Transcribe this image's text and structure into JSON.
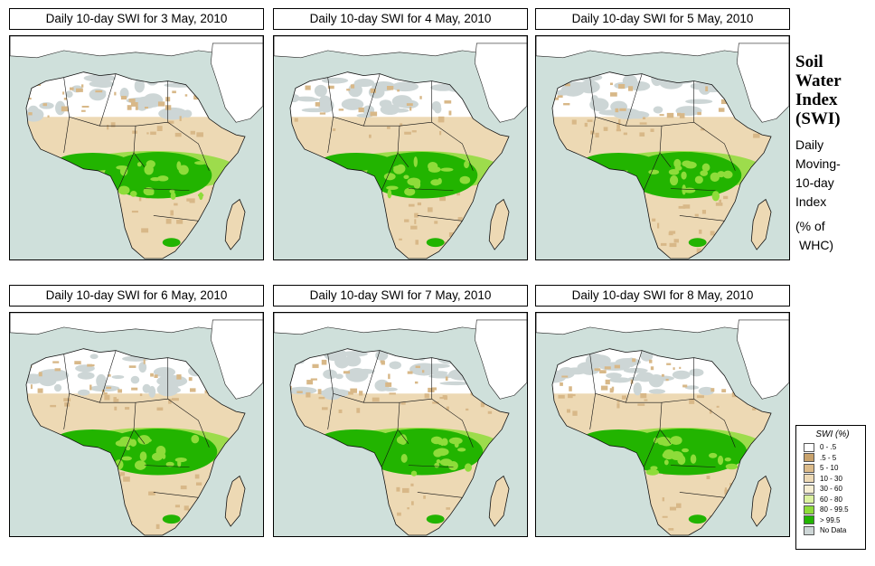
{
  "panels": [
    {
      "title": "Daily 10-day SWI for  3 May, 2010"
    },
    {
      "title": "Daily 10-day SWI for  4 May, 2010"
    },
    {
      "title": "Daily 10-day SWI for  5 May, 2010"
    },
    {
      "title": "Daily 10-day SWI for  6 May, 2010"
    },
    {
      "title": "Daily 10-day SWI for  7 May, 2010"
    },
    {
      "title": "Daily 10-day SWI for  8 May, 2010"
    }
  ],
  "side": {
    "title_line1": "Soil",
    "title_line2": "Water",
    "title_line3": "Index",
    "title_line4": "(SWI)",
    "sub_line1": "Daily",
    "sub_line2": "Moving-",
    "sub_line3": "10-day",
    "sub_line4": "Index",
    "unit_line1": "(% of",
    "unit_line2": "WHC)"
  },
  "legend": {
    "title": "SWI (%)",
    "items": [
      {
        "label": "0 - .5",
        "color": "#ffffff"
      },
      {
        "label": ".5 - 5",
        "color": "#c8a26c"
      },
      {
        "label": "5 - 10",
        "color": "#dcbb8a"
      },
      {
        "label": "10 - 30",
        "color": "#edd9b4"
      },
      {
        "label": "30 - 60",
        "color": "#f6eed2"
      },
      {
        "label": "60 - 80",
        "color": "#dcf2a0"
      },
      {
        "label": "80 - 99.5",
        "color": "#8edc3a"
      },
      {
        "label": "> 99.5",
        "color": "#22b400"
      },
      {
        "label": "No Data",
        "color": "#cdd6d6"
      }
    ]
  },
  "colors": {
    "ocean": "#cfe0db",
    "land": "#edd9b4",
    "dry": "#d8b888",
    "desert": "#ffffff",
    "nodata": "#cdd6d6",
    "wet": "#22b400",
    "moist": "#8edc3a"
  }
}
